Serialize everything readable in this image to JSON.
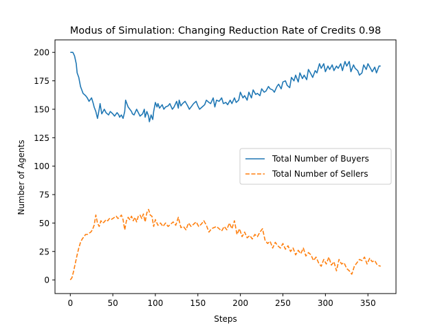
{
  "chart_data": {
    "type": "line",
    "title": "Modus of Simulation: Changing Reduction Rate of Credits 0.98",
    "xlabel": "Steps",
    "ylabel": "Number of Agents",
    "xlim": [
      -18,
      383
    ],
    "ylim": [
      -12,
      211
    ],
    "xticks": [
      0,
      50,
      100,
      150,
      200,
      250,
      300,
      350
    ],
    "yticks": [
      0,
      25,
      50,
      75,
      100,
      125,
      150,
      175,
      200
    ],
    "grid": false,
    "legend_position": "center-right",
    "series": [
      {
        "name": "Total Number of Buyers",
        "color": "#1f77b4",
        "dash": "solid",
        "x": [
          0,
          3,
          5,
          7,
          8,
          10,
          12,
          14,
          15,
          18,
          20,
          22,
          25,
          27,
          28,
          30,
          32,
          34,
          35,
          37,
          40,
          42,
          45,
          47,
          50,
          52,
          55,
          57,
          58,
          60,
          62,
          64,
          65,
          67,
          68,
          70,
          72,
          73,
          75,
          78,
          80,
          82,
          85,
          87,
          88,
          90,
          92,
          93,
          95,
          97,
          98,
          100,
          102,
          103,
          105,
          108,
          110,
          112,
          115,
          117,
          120,
          122,
          125,
          127,
          128,
          130,
          132,
          135,
          138,
          140,
          142,
          145,
          148,
          150,
          152,
          155,
          158,
          160,
          163,
          165,
          168,
          170,
          172,
          175,
          178,
          180,
          183,
          185,
          188,
          190,
          193,
          195,
          198,
          200,
          203,
          205,
          208,
          210,
          213,
          215,
          218,
          220,
          223,
          225,
          228,
          230,
          233,
          235,
          238,
          240,
          243,
          245,
          248,
          250,
          253,
          255,
          258,
          260,
          263,
          265,
          268,
          270,
          273,
          275,
          278,
          280,
          283,
          285,
          288,
          290,
          293,
          295,
          298,
          300,
          303,
          305,
          308,
          310,
          313,
          315,
          318,
          320,
          323,
          325,
          328,
          330,
          333,
          335,
          338,
          340,
          343,
          345,
          348,
          350,
          353,
          355,
          358,
          360,
          363,
          365
        ],
        "values": [
          200,
          200,
          197,
          190,
          182,
          178,
          170,
          166,
          164,
          162,
          160,
          157,
          160,
          155,
          152,
          148,
          142,
          150,
          155,
          146,
          150,
          147,
          145,
          148,
          146,
          144,
          147,
          145,
          143,
          145,
          142,
          148,
          158,
          154,
          152,
          150,
          148,
          146,
          145,
          150,
          147,
          144,
          146,
          150,
          143,
          148,
          144,
          139,
          145,
          141,
          148,
          156,
          152,
          155,
          151,
          154,
          150,
          152,
          153,
          155,
          150,
          152,
          157,
          151,
          158,
          153,
          155,
          157,
          153,
          150,
          152,
          155,
          157,
          153,
          150,
          152,
          154,
          158,
          156,
          155,
          160,
          152,
          158,
          157,
          160,
          155,
          156,
          154,
          158,
          155,
          160,
          156,
          158,
          165,
          160,
          162,
          158,
          165,
          160,
          167,
          163,
          164,
          162,
          168,
          165,
          166,
          170,
          168,
          167,
          165,
          170,
          172,
          168,
          174,
          175,
          171,
          169,
          178,
          175,
          180,
          174,
          182,
          177,
          180,
          176,
          185,
          181,
          178,
          184,
          182,
          190,
          186,
          190,
          183,
          188,
          185,
          189,
          184,
          188,
          186,
          190,
          184,
          192,
          188,
          192,
          183,
          189,
          186,
          184,
          180,
          182,
          189,
          185,
          190,
          186,
          183,
          187,
          182,
          188,
          188
        ]
      },
      {
        "name": "Total Number of Sellers",
        "color": "#ff7f0e",
        "dash": "dashed",
        "x": [
          0,
          2,
          4,
          6,
          8,
          10,
          12,
          14,
          16,
          18,
          20,
          22,
          24,
          26,
          28,
          30,
          32,
          34,
          36,
          38,
          40,
          42,
          44,
          46,
          48,
          50,
          52,
          54,
          56,
          58,
          60,
          62,
          64,
          66,
          68,
          70,
          72,
          74,
          76,
          78,
          80,
          82,
          84,
          86,
          88,
          90,
          92,
          94,
          96,
          98,
          100,
          103,
          106,
          109,
          112,
          115,
          118,
          121,
          124,
          127,
          130,
          133,
          136,
          139,
          142,
          145,
          148,
          151,
          154,
          157,
          160,
          163,
          166,
          169,
          172,
          175,
          178,
          181,
          184,
          187,
          190,
          193,
          196,
          199,
          202,
          205,
          208,
          211,
          214,
          217,
          220,
          223,
          226,
          229,
          232,
          235,
          238,
          241,
          244,
          247,
          250,
          253,
          256,
          259,
          262,
          265,
          268,
          271,
          274,
          277,
          280,
          283,
          286,
          289,
          292,
          295,
          298,
          301,
          304,
          307,
          310,
          313,
          316,
          319,
          322,
          325,
          328,
          331,
          334,
          337,
          340,
          343,
          346,
          349,
          352,
          355,
          358,
          361,
          365
        ],
        "values": [
          0,
          2,
          8,
          15,
          22,
          28,
          33,
          36,
          38,
          40,
          40,
          41,
          42,
          44,
          48,
          57,
          50,
          47,
          52,
          50,
          51,
          53,
          52,
          54,
          53,
          54,
          55,
          56,
          54,
          55,
          57,
          53,
          44,
          52,
          55,
          53,
          56,
          52,
          55,
          51,
          56,
          57,
          54,
          58,
          51,
          59,
          62,
          57,
          56,
          47,
          53,
          48,
          50,
          47,
          50,
          47,
          49,
          51,
          48,
          55,
          46,
          47,
          44,
          50,
          47,
          49,
          51,
          47,
          49,
          52,
          48,
          42,
          45,
          46,
          47,
          45,
          43,
          47,
          44,
          50,
          45,
          52,
          40,
          45,
          38,
          42,
          37,
          39,
          36,
          40,
          38,
          42,
          45,
          35,
          32,
          34,
          28,
          33,
          30,
          28,
          32,
          27,
          30,
          25,
          28,
          22,
          26,
          23,
          28,
          21,
          24,
          22,
          17,
          20,
          15,
          12,
          18,
          14,
          20,
          13,
          16,
          8,
          18,
          14,
          15,
          10,
          8,
          5,
          12,
          15,
          18,
          17,
          20,
          14,
          19,
          16,
          17,
          13,
          12
        ]
      }
    ]
  }
}
